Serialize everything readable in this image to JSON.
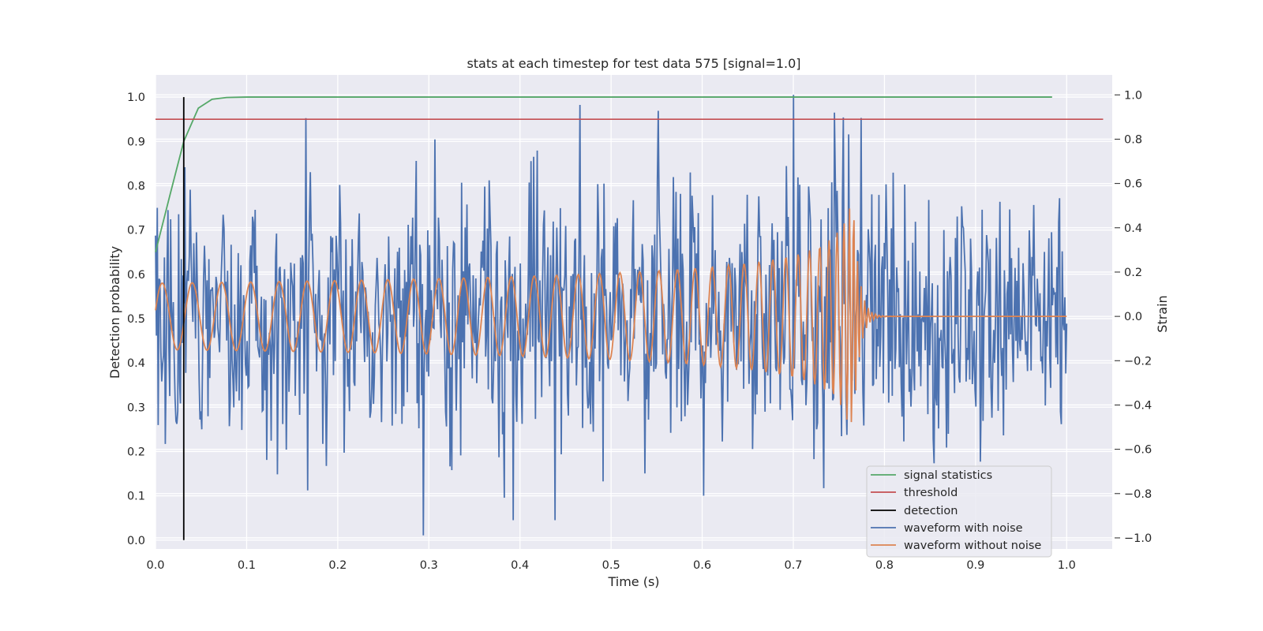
{
  "chart_data": {
    "type": "line",
    "title": "stats at each timestep for test data 575 [signal=1.0]",
    "xlabel": "Time (s)",
    "ylabel": "Detection probability",
    "y2label": "Strain",
    "xlim": [
      0.0,
      1.05
    ],
    "ylim": [
      -0.02,
      1.05
    ],
    "y2lim": [
      -1.05,
      1.09
    ],
    "x_ticks": [
      "0.0",
      "0.1",
      "0.2",
      "0.3",
      "0.4",
      "0.5",
      "0.6",
      "0.7",
      "0.8",
      "0.9",
      "1.0"
    ],
    "y_ticks": [
      "0.0",
      "0.1",
      "0.2",
      "0.3",
      "0.4",
      "0.5",
      "0.6",
      "0.7",
      "0.8",
      "0.9",
      "1.0"
    ],
    "y2_ticks": [
      "−1.0",
      "−0.8",
      "−0.6",
      "−0.4",
      "−0.2",
      "0.0",
      "0.2",
      "0.4",
      "0.6",
      "0.8",
      "1.0"
    ],
    "grid": true,
    "legend_position": "lower right",
    "colors": {
      "signal_statistics": "#55a868",
      "threshold": "#c44e52",
      "detection": "#000000",
      "waveform_with_noise": "#4c72b0",
      "waveform_without_noise": "#dd8452",
      "plot_background": "#eaeaf2",
      "grid": "#ffffff"
    },
    "series": [
      {
        "name": "signal statistics",
        "axis": "left",
        "x": [
          0.0,
          0.016,
          0.031,
          0.047,
          0.062,
          0.078,
          0.1,
          0.2,
          0.4,
          0.6,
          0.8,
          0.984
        ],
        "y": [
          0.65,
          0.78,
          0.9,
          0.975,
          0.995,
          0.999,
          1.0,
          1.0,
          1.0,
          1.0,
          1.0,
          1.0
        ]
      },
      {
        "name": "threshold",
        "axis": "left",
        "x": [
          0.0,
          1.04
        ],
        "y": [
          0.95,
          0.95
        ]
      },
      {
        "name": "detection",
        "axis": "left",
        "x": [
          0.031,
          0.031
        ],
        "y": [
          0.0,
          1.0
        ]
      },
      {
        "name": "waveform with noise",
        "axis": "right",
        "description": "noisy strain, sampled 1024 Hz, amplitude roughly within [-1, 1]"
      },
      {
        "name": "waveform without noise",
        "axis": "right",
        "description": "chirp: ~30 Hz at 0.0 s rising to ~150 Hz, amplitude 0.15 growing to ~0.48 at merger ~0.767 s, then ringdown to 0.0"
      }
    ],
    "annotations": {
      "noise_peaks": [
        {
          "x": 0.7,
          "y": 1.0
        },
        {
          "x": 0.745,
          "y": 0.92
        },
        {
          "x": 0.165,
          "y": 0.895
        },
        {
          "x": 0.393,
          "y": -0.92
        },
        {
          "x": 0.438,
          "y": -0.92
        }
      ],
      "merger_time": 0.767,
      "signal_end_time": 1.0
    }
  }
}
